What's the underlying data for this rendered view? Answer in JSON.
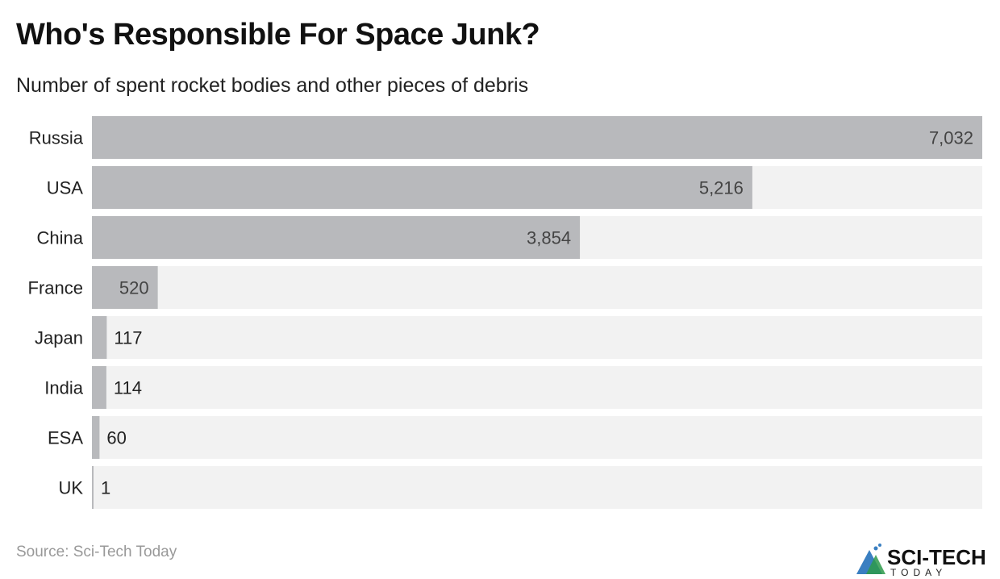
{
  "title": "Who's Responsible For Space Junk?",
  "subtitle": "Number of spent rocket bodies and other pieces of debris",
  "source": "Source: Sci-Tech Today",
  "logo": {
    "text": "SCI-TECH",
    "subtext": "TODAY"
  },
  "colors": {
    "bar": "#b8b9bc",
    "track": "#f2f2f2",
    "label": "#222222",
    "value_inside": "#444444"
  },
  "chart_data": {
    "type": "bar",
    "orientation": "horizontal",
    "title": "Who's Responsible For Space Junk?",
    "subtitle": "Number of spent rocket bodies and other pieces of debris",
    "categories": [
      "Russia",
      "USA",
      "China",
      "France",
      "Japan",
      "India",
      "ESA",
      "UK"
    ],
    "values": [
      7032,
      5216,
      3854,
      520,
      117,
      114,
      60,
      1
    ],
    "value_labels": [
      "7,032",
      "5,216",
      "3,854",
      "520",
      "117",
      "114",
      "60",
      "1"
    ],
    "xlim": [
      0,
      7032
    ],
    "grid": false
  }
}
